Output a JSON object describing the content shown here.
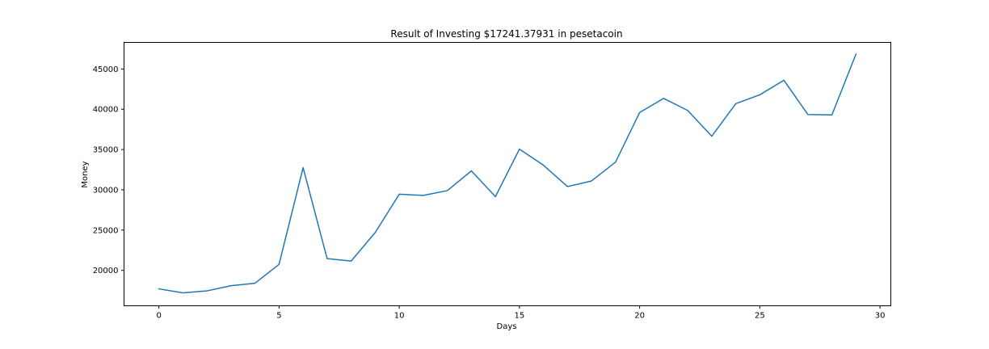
{
  "chart_data": {
    "type": "line",
    "title": "Result of Investing $17241.37931 in pesetacoin",
    "xlabel": "Days",
    "ylabel": "Money",
    "xlim": [
      -1.45,
      30.45
    ],
    "ylim": [
      15600,
      48300
    ],
    "xticks": [
      0,
      5,
      10,
      15,
      20,
      25,
      30
    ],
    "yticks": [
      20000,
      25000,
      30000,
      35000,
      40000,
      45000
    ],
    "grid": false,
    "legend": "none",
    "series": [
      {
        "color": "#1f77b4",
        "x": [
          0,
          1,
          2,
          3,
          4,
          5,
          6,
          7,
          8,
          9,
          10,
          11,
          12,
          13,
          14,
          15,
          16,
          17,
          18,
          19,
          20,
          21,
          22,
          23,
          24,
          25,
          26,
          27,
          28,
          29
        ],
        "values": [
          17700,
          17200,
          17450,
          18100,
          18400,
          20750,
          32750,
          21450,
          21150,
          24700,
          29450,
          29300,
          29900,
          32350,
          29150,
          35050,
          33050,
          30400,
          31100,
          33450,
          39600,
          41350,
          39850,
          36650,
          40700,
          41800,
          43600,
          39350,
          39300,
          46850
        ]
      }
    ]
  }
}
